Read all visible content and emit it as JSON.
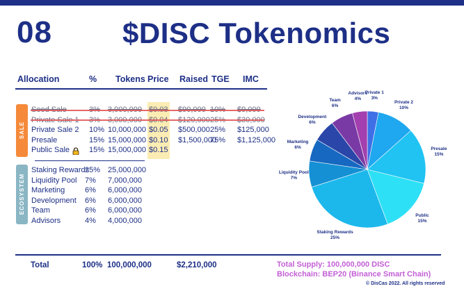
{
  "slide": {
    "number": "08",
    "title": "$DISC Tokenomics"
  },
  "table": {
    "headers": [
      "Allocation",
      "%",
      "Tokens",
      "Price",
      "Raised",
      "TGE",
      "IMC"
    ],
    "groups": {
      "sale": "SALE",
      "ecosystem": "ECOSYSTEM"
    },
    "sale_rows": [
      {
        "name": "Seed Sale",
        "pct": "3%",
        "tokens": "3,000,000",
        "price": "$0.03",
        "raised": "$90,000",
        "tge": "10%",
        "imc": "$9,000",
        "struck": true
      },
      {
        "name": "Private Sale 1",
        "pct": "3%",
        "tokens": "3,000,000",
        "price": "$0.04",
        "raised": "$120,000",
        "tge": "25%",
        "imc": "$30,000",
        "struck": true
      },
      {
        "name": "Private Sale 2",
        "pct": "10%",
        "tokens": "10,000,000",
        "price": "$0.05",
        "raised": "$500,000",
        "tge": "25%",
        "imc": "$125,000",
        "struck": false
      },
      {
        "name": "Presale",
        "pct": "15%",
        "tokens": "15,000,000",
        "price": "$0.10",
        "raised": "$1,500,000",
        "tge": "75%",
        "imc": "$1,125,000",
        "struck": false
      },
      {
        "name": "Public Sale",
        "pct": "15%",
        "tokens": "15,000,000",
        "price": "$0.15",
        "raised": "",
        "tge": "",
        "imc": "",
        "struck": false
      }
    ],
    "public_sale_icon": "lock-icon",
    "ecosystem_rows": [
      {
        "name": "Staking Rewards",
        "pct": "25%",
        "tokens": "25,000,000"
      },
      {
        "name": "Liquidity Pool",
        "pct": "7%",
        "tokens": "7,000,000"
      },
      {
        "name": "Marketing",
        "pct": "6%",
        "tokens": "6,000,000"
      },
      {
        "name": "Development",
        "pct": "6%",
        "tokens": "6,000,000"
      },
      {
        "name": "Team",
        "pct": "6%",
        "tokens": "6,000,000"
      },
      {
        "name": "Advisors",
        "pct": "4%",
        "tokens": "4,000,000"
      }
    ],
    "total": {
      "label": "Total",
      "pct": "100%",
      "tokens": "100,000,000",
      "raised": "$2,210,000"
    }
  },
  "footer": {
    "supply": "Total Supply: 100,000,000 DISC",
    "chain": "Blockchain: BEP20 (Binance Smart Chain)",
    "copyright": "© DisCas 2022. All rights reserved"
  },
  "colors": {
    "navy": "#1d2f86",
    "sale_tag": "#f58a3a",
    "ecosystem_tag": "#8ab6c4",
    "price_highlight": "#fbecb4",
    "footer_purple": "#c35fd6"
  },
  "chart_data": {
    "type": "pie",
    "start_angle": 0,
    "slices": [
      {
        "label": "Private 1",
        "value": 3,
        "pct": "3%",
        "color": "#3f6fe6"
      },
      {
        "label": "Private 2",
        "value": 10,
        "pct": "10%",
        "color": "#1fa7ef"
      },
      {
        "label": "Presale",
        "value": 15,
        "pct": "15%",
        "color": "#20c3f2"
      },
      {
        "label": "Public",
        "value": 15,
        "pct": "15%",
        "color": "#2ee0f5"
      },
      {
        "label": "Staking Rewards",
        "value": 25,
        "pct": "25%",
        "color": "#1cb8ec"
      },
      {
        "label": "Liquidity Pool",
        "value": 7,
        "pct": "7%",
        "color": "#1590d4"
      },
      {
        "label": "Marketing",
        "value": 6,
        "pct": "6%",
        "color": "#1668c0"
      },
      {
        "label": "Development",
        "value": 6,
        "pct": "6%",
        "color": "#2a46a8"
      },
      {
        "label": "Team",
        "value": 6,
        "pct": "6%",
        "color": "#7a3aa5"
      },
      {
        "label": "Advisors",
        "value": 4,
        "pct": "4%",
        "color": "#a33fae"
      }
    ]
  }
}
